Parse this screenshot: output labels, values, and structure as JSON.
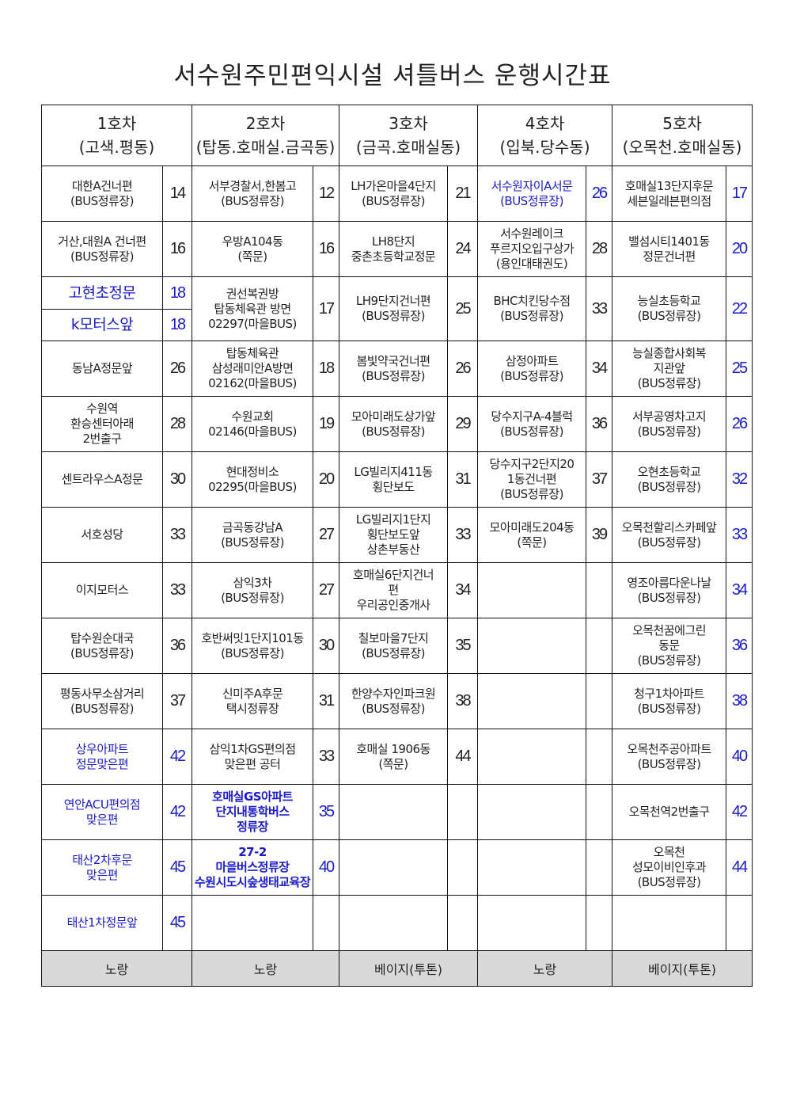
{
  "title": "서수원주민편익시설 셔틀버스 운행시간표",
  "routes": [
    {
      "header": "1호차\n(고색.평동)",
      "bus_color": "노랑",
      "stops": [
        {
          "name": "대한A건너편\n(BUS정류장)",
          "time": "14"
        },
        {
          "name": "거산,대원A 건너편\n(BUS정류장)",
          "time": "16"
        },
        {
          "name": "고현초정문",
          "time": "18",
          "highlight": true
        },
        {
          "name": "k모터스앞",
          "time": "18",
          "highlight": true
        },
        {
          "name": "동남A정문앞",
          "time": "26"
        },
        {
          "name": "수원역\n환승센터아래\n2번출구",
          "time": "28"
        },
        {
          "name": "센트라우스A정문",
          "time": "30"
        },
        {
          "name": "서호성당",
          "time": "33"
        },
        {
          "name": "이지모터스",
          "time": "33"
        },
        {
          "name": "탑수원순대국\n(BUS정류장)",
          "time": "36"
        },
        {
          "name": "평동사무소삼거리\n(BUS정류장)",
          "time": "37"
        },
        {
          "name": "상우아파트\n정문맞은편",
          "time": "42",
          "highlight": true
        },
        {
          "name": "연안ACU편의점\n맞은편",
          "time": "42",
          "highlight": true
        },
        {
          "name": "태산2차후문\n맞은편",
          "time": "45",
          "highlight": true
        },
        {
          "name": "태산1차정문앞",
          "time": "45",
          "highlight": true
        }
      ]
    },
    {
      "header": "2호차\n(탑동.호매실.금곡동)",
      "bus_color": "노랑",
      "stops": [
        {
          "name": "서부경찰서,한봄고\n(BUS정류장)",
          "time": "12"
        },
        {
          "name": "우방A104동\n(쪽문)",
          "time": "16"
        },
        {
          "name": "권선복권방\n탑동체육관 방면\n02297(마을BUS)",
          "time": "17"
        },
        {
          "name": "탑동체육관\n삼성래미안A방면\n02162(마을BUS)",
          "time": "18"
        },
        {
          "name": "수원교회\n02146(마을BUS)",
          "time": "19"
        },
        {
          "name": "현대정비소\n02295(마을BUS)",
          "time": "20"
        },
        {
          "name": "금곡동강남A\n(BUS정류장)",
          "time": "27"
        },
        {
          "name": "삼익3차\n(BUS정류장)",
          "time": "27"
        },
        {
          "name": "호반써밋1단지101동\n(BUS정류장)",
          "time": "30"
        },
        {
          "name": "신미주A후문\n택시정류장",
          "time": "31"
        },
        {
          "name": "삼익1차GS편의점\n맞은편 공터",
          "time": "33"
        },
        {
          "name": "호매실GS아파트\n단지내통학버스\n정류장",
          "time": "35",
          "highlight": true
        },
        {
          "name": "27-2\n마을버스정류장\n수원시도시숲생태교육장",
          "time": "40",
          "highlight": true
        },
        {
          "name": "",
          "time": ""
        }
      ]
    },
    {
      "header": "3호차\n(금곡.호매실동)",
      "bus_color": "베이지(투톤)",
      "stops": [
        {
          "name": "LH가온마을4단지\n(BUS정류장)",
          "time": "21"
        },
        {
          "name": "LH8단지\n중촌초등학교정문",
          "time": "24"
        },
        {
          "name": "LH9단지건너편\n(BUS정류장)",
          "time": "25"
        },
        {
          "name": "봄빛약국건너편\n(BUS정류장)",
          "time": "26"
        },
        {
          "name": "모아미래도상가앞\n(BUS정류장)",
          "time": "29"
        },
        {
          "name": "LG빌리지411동\n횡단보도",
          "time": "31"
        },
        {
          "name": "LG빌리지1단지\n횡단보도앞\n상촌부동산",
          "time": "33"
        },
        {
          "name": "호매실6단지건너\n편\n우리공인중개사",
          "time": "34"
        },
        {
          "name": "칠보마을7단지\n(BUS정류장)",
          "time": "35"
        },
        {
          "name": "한양수자인파크원\n(BUS정류장)",
          "time": "38"
        },
        {
          "name": "호매실 1906동\n(쪽문)",
          "time": "44"
        },
        {
          "name": "",
          "time": ""
        },
        {
          "name": "",
          "time": ""
        },
        {
          "name": "",
          "time": ""
        }
      ]
    },
    {
      "header": "4호차\n(입북.당수동)",
      "bus_color": "노랑",
      "stops": [
        {
          "name": "서수원자이A서문\n(BUS정류장)",
          "time": "26",
          "highlight": true
        },
        {
          "name": "서수원레이크\n푸르지오입구상가\n(용인대태권도)",
          "time": "28"
        },
        {
          "name": "BHC치킨당수점\n(BUS정류장)",
          "time": "33"
        },
        {
          "name": "삼정아파트\n(BUS정류장)",
          "time": "34"
        },
        {
          "name": "당수지구A-4블럭\n(BUS정류장)",
          "time": "36"
        },
        {
          "name": "당수지구2단지20\n1동건너편\n(BUS정류장)",
          "time": "37"
        },
        {
          "name": "모아미래도204동\n(쪽문)",
          "time": "39"
        },
        {
          "name": "",
          "time": ""
        },
        {
          "name": "",
          "time": ""
        },
        {
          "name": "",
          "time": ""
        },
        {
          "name": "",
          "time": ""
        },
        {
          "name": "",
          "time": ""
        },
        {
          "name": "",
          "time": ""
        },
        {
          "name": "",
          "time": ""
        }
      ]
    },
    {
      "header": "5호차\n(오목천.호매실동)",
      "bus_color": "베이지(투톤)",
      "time_highlight": true,
      "stops": [
        {
          "name": "호매실13단지후문\n세븐일레븐편의점",
          "time": "17"
        },
        {
          "name": "밸섬시티1401동\n정문건너편",
          "time": "20"
        },
        {
          "name": "능실초등학교\n(BUS정류장)",
          "time": "22"
        },
        {
          "name": "능실종합사회복\n지관앞\n(BUS정류장)",
          "time": "25"
        },
        {
          "name": "서부공영차고지\n(BUS정류장)",
          "time": "26"
        },
        {
          "name": "오현초등학교\n(BUS정류장)",
          "time": "32"
        },
        {
          "name": "오목천할리스카페앞\n(BUS정류장)",
          "time": "33"
        },
        {
          "name": "영조아름다운나날\n(BUS정류장)",
          "time": "34"
        },
        {
          "name": "오목천꿈에그린\n동문\n(BUS정류장)",
          "time": "36"
        },
        {
          "name": "청구1차아파트\n(BUS정류장)",
          "time": "38"
        },
        {
          "name": "오목천주공아파트\n(BUS정류장)",
          "time": "40"
        },
        {
          "name": "오목천역2번출구",
          "time": "42"
        },
        {
          "name": "오목천\n성모이비인후과\n(BUS정류장)",
          "time": "44"
        },
        {
          "name": "",
          "time": ""
        }
      ]
    }
  ],
  "colors": {
    "highlight": "#1a1acc",
    "footer_bg": "#d9d9d9",
    "text": "#222222"
  }
}
